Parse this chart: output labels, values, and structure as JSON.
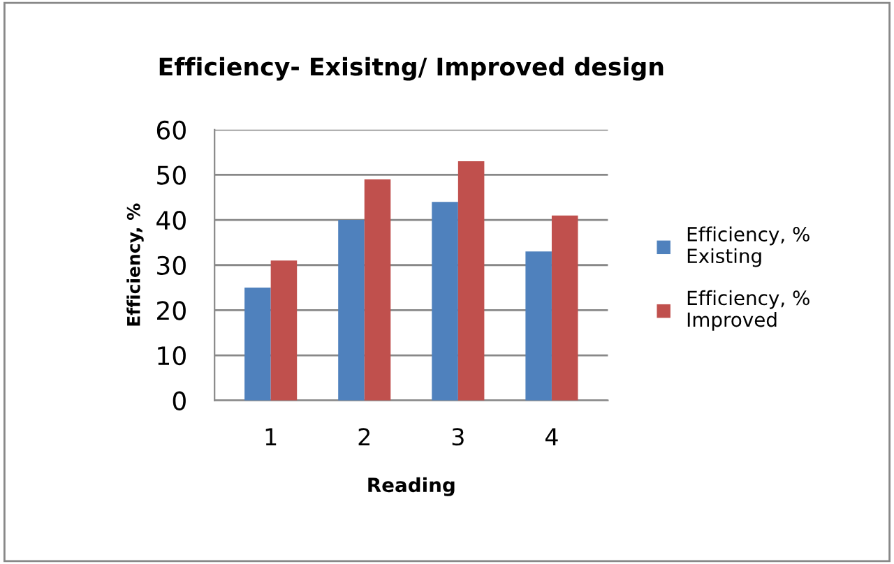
{
  "chart_data": {
    "type": "bar",
    "title": "Efficiency- Exisitng/ Improved design",
    "xlabel": "Reading",
    "ylabel": "Efficiency, %",
    "categories": [
      "1",
      "2",
      "3",
      "4"
    ],
    "series": [
      {
        "name": "Efficiency, %\nExisting",
        "color": "#4f81bd",
        "values": [
          25,
          40,
          44,
          33
        ]
      },
      {
        "name": "Efficiency, %\nImproved",
        "color": "#c0504d",
        "values": [
          31,
          49,
          53,
          41
        ]
      }
    ],
    "ylim": [
      0,
      60
    ],
    "yticks": [
      0,
      10,
      20,
      30,
      40,
      50,
      60
    ],
    "grid": "y",
    "legend": "right"
  }
}
